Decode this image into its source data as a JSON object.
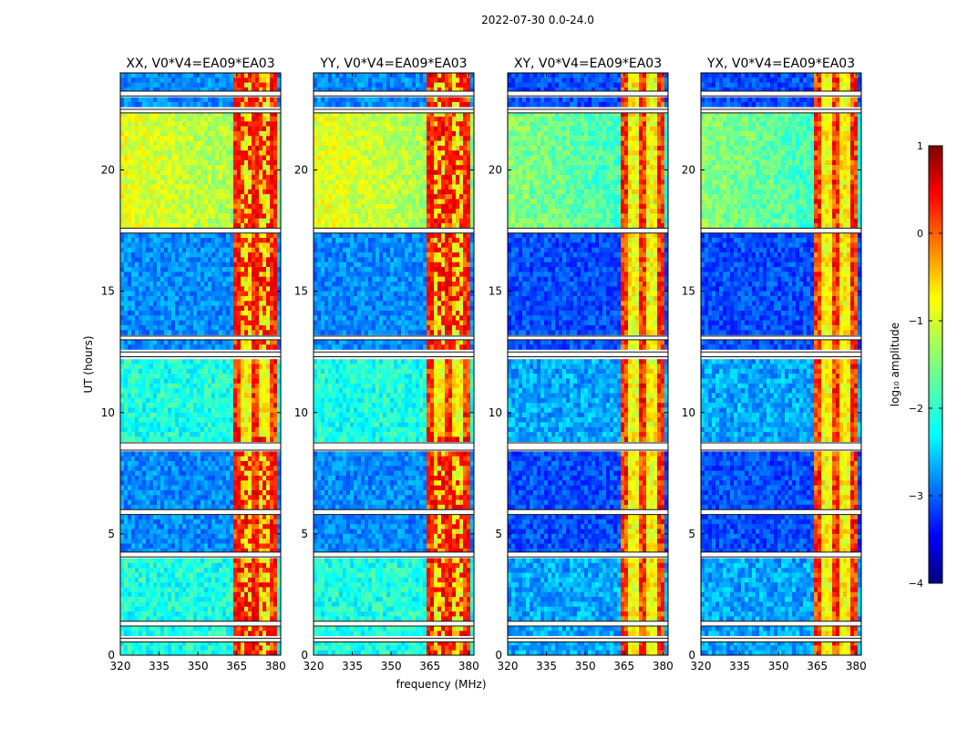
{
  "chart_data": {
    "type": "heatmap",
    "title": "2022-07-30 0.0-24.0",
    "xlabel": "frequency (MHz)",
    "ylabel": "UT (hours)",
    "xlim": [
      320,
      382
    ],
    "ylim": [
      0,
      24
    ],
    "x_ticks": [
      320,
      335,
      350,
      365,
      380
    ],
    "y_ticks": [
      0,
      5,
      10,
      15,
      20
    ],
    "panels": [
      {
        "title": "XX, V0*V4=EA09*EA03"
      },
      {
        "title": "YY, V0*V4=EA09*EA03"
      },
      {
        "title": "XY, V0*V4=EA09*EA03"
      },
      {
        "title": "YX, V0*V4=EA09*EA03"
      }
    ],
    "colorbar": {
      "label": "log₁₀ amplitude",
      "range": [
        -4,
        1
      ],
      "ticks": [
        1,
        0,
        -1,
        -2,
        -3,
        -4
      ],
      "colormap": "jet",
      "position": "right"
    },
    "flagged_hours": [
      [
        0.55,
        0.7
      ],
      [
        1.2,
        1.4
      ],
      [
        4.05,
        4.25
      ],
      [
        5.8,
        6.0
      ],
      [
        8.45,
        8.75
      ],
      [
        12.3,
        12.5
      ],
      [
        13.0,
        13.15
      ],
      [
        17.4,
        17.6
      ],
      [
        22.35,
        22.5
      ],
      [
        23.05,
        23.25
      ]
    ],
    "rfi_band_mhz": [
      363.5,
      380.5
    ]
  }
}
